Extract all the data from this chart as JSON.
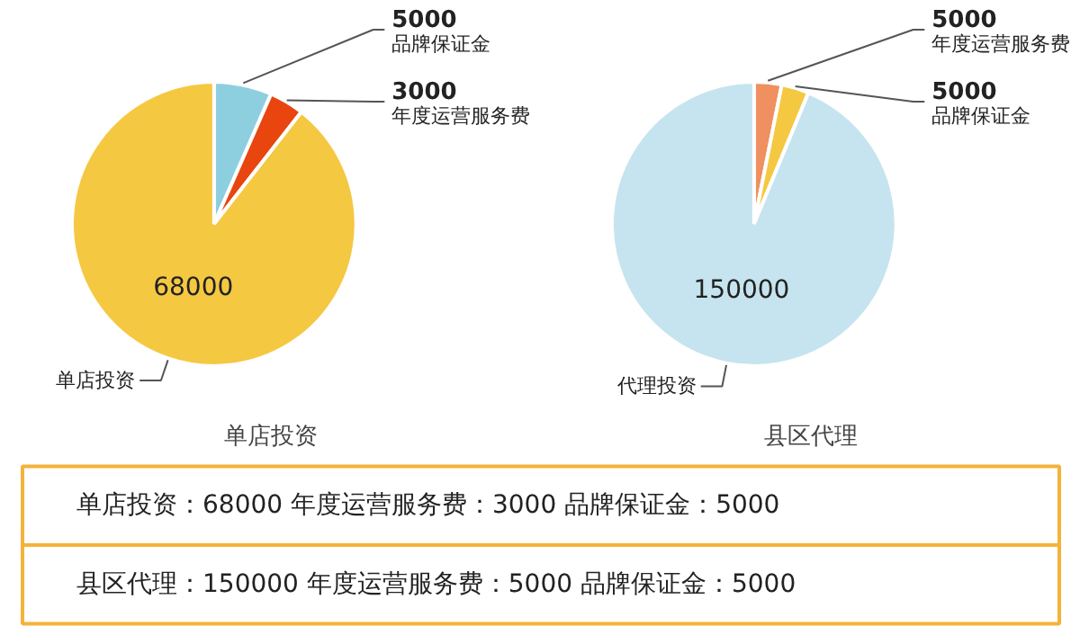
{
  "chart_data": [
    {
      "type": "pie",
      "title": "单店投资",
      "categories": [
        "品牌保证金",
        "年度运营服务费",
        "单店投资"
      ],
      "values": [
        5000,
        3000,
        68000
      ],
      "colors": [
        "#8ecfdf",
        "#e8450f",
        "#f5c842"
      ],
      "data_labels": true
    },
    {
      "type": "pie",
      "title": "县区代理",
      "categories": [
        "年度运营服务费",
        "品牌保证金",
        "代理投资"
      ],
      "values": [
        5000,
        5000,
        150000
      ],
      "colors": [
        "#f09060",
        "#f5c842",
        "#c6e4ef"
      ],
      "data_labels": true
    },
    {
      "type": "other",
      "annotations": [
        "单店投资：68000    年度运营服务费：3000    品牌保证金：5000",
        "县区代理：150000  年度运营服务费：5000    品牌保证金：5000"
      ]
    }
  ]
}
